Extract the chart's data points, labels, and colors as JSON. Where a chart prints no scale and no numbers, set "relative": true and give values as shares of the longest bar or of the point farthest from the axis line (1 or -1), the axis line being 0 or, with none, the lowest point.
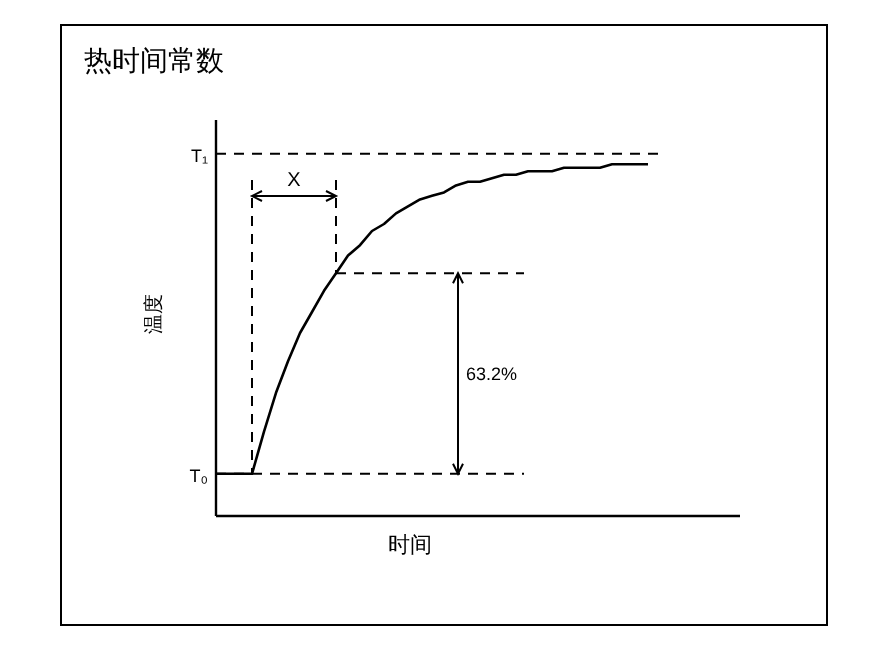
{
  "chart_data": {
    "type": "line",
    "title": "热时间常数",
    "xlabel": "时间",
    "ylabel": "温度",
    "relative": true,
    "categories": [
      null,
      null,
      null,
      null,
      null,
      null,
      null,
      null,
      null,
      null,
      null,
      null,
      null,
      null,
      null,
      null,
      null,
      null,
      null,
      null,
      null,
      null,
      null,
      null,
      null,
      null,
      null,
      null,
      null,
      null,
      null,
      null,
      null,
      null,
      null,
      null,
      null
    ],
    "series": [
      {
        "color": "#000000",
        "values": [
          0.12,
          0.12,
          0.12,
          0.12,
          0.24,
          0.35,
          0.44,
          0.52,
          0.58,
          0.64,
          0.69,
          0.74,
          0.77,
          0.81,
          0.83,
          0.86,
          0.88,
          0.9,
          0.91,
          0.92,
          0.94,
          0.95,
          0.95,
          0.96,
          0.97,
          0.97,
          0.98,
          0.98,
          0.98,
          0.99,
          0.99,
          0.99,
          0.99,
          1.0,
          1.0,
          1.0,
          1.0
        ]
      }
    ],
    "ref_lines": [
      {
        "axis": "y",
        "value": 1.03,
        "label": "T₁",
        "line_style": "dashed"
      },
      {
        "axis": "y",
        "value": 0.12,
        "label": "T₀",
        "line_style": "dashed"
      },
      {
        "axis": "y",
        "value": 0.69,
        "line_style": "dashed"
      }
    ],
    "annotations": [
      "X",
      "63.2%"
    ],
    "line_style": "solid"
  }
}
